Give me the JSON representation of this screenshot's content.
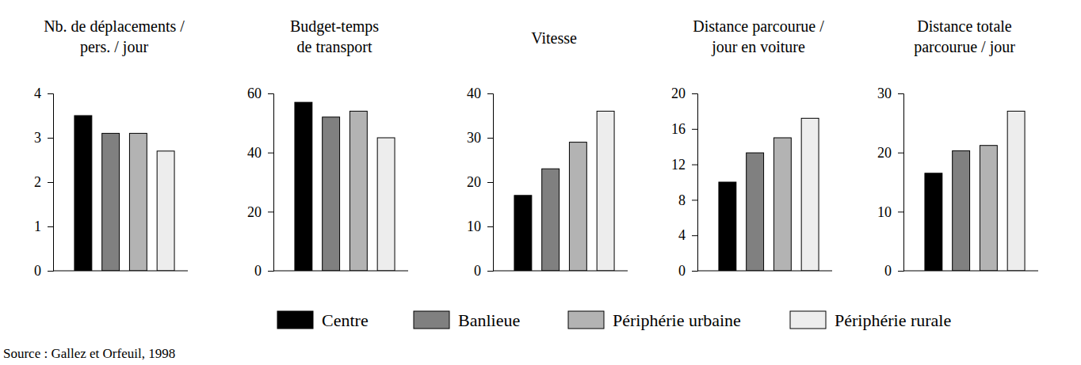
{
  "chart_data": [
    {
      "type": "bar",
      "title": "Nb. de déplacements /\npers. / jour",
      "values": [
        3.5,
        3.1,
        3.1,
        2.7
      ],
      "ylim": [
        0,
        4
      ],
      "yticks": [
        0,
        1,
        2,
        3,
        4
      ],
      "tick_labels": "y"
    },
    {
      "type": "bar",
      "title": "Budget-temps\nde transport",
      "values": [
        57,
        52,
        54,
        45
      ],
      "ylim": [
        0,
        60
      ],
      "yticks": [
        0,
        20,
        40,
        60
      ],
      "tick_labels": "y"
    },
    {
      "type": "bar",
      "title": "Vitesse",
      "values": [
        17,
        23,
        29,
        36
      ],
      "ylim": [
        0,
        40
      ],
      "yticks": [
        0,
        10,
        20,
        30,
        40
      ],
      "tick_labels": "y"
    },
    {
      "type": "bar",
      "title": "Distance parcourue /\njour en voiture",
      "values": [
        10,
        13.3,
        15,
        17.2
      ],
      "ylim": [
        0,
        20
      ],
      "yticks": [
        0,
        4,
        8,
        12,
        16,
        20
      ],
      "tick_labels": "y"
    },
    {
      "type": "bar",
      "title": "Distance totale\nparcourue / jour",
      "values": [
        16.5,
        20.3,
        21.2,
        27
      ],
      "ylim": [
        0,
        30
      ],
      "yticks": [
        0,
        10,
        20,
        30
      ],
      "tick_labels": "y"
    }
  ],
  "categories": [
    "Centre",
    "Banlieue",
    "Périphérie urbaine",
    "Périphérie rurale"
  ],
  "colors": [
    "#000000",
    "#808080",
    "#b3b3b3",
    "#ededed"
  ],
  "legend": "bottom",
  "source": "Source : Gallez et Orfeuil, 1998"
}
